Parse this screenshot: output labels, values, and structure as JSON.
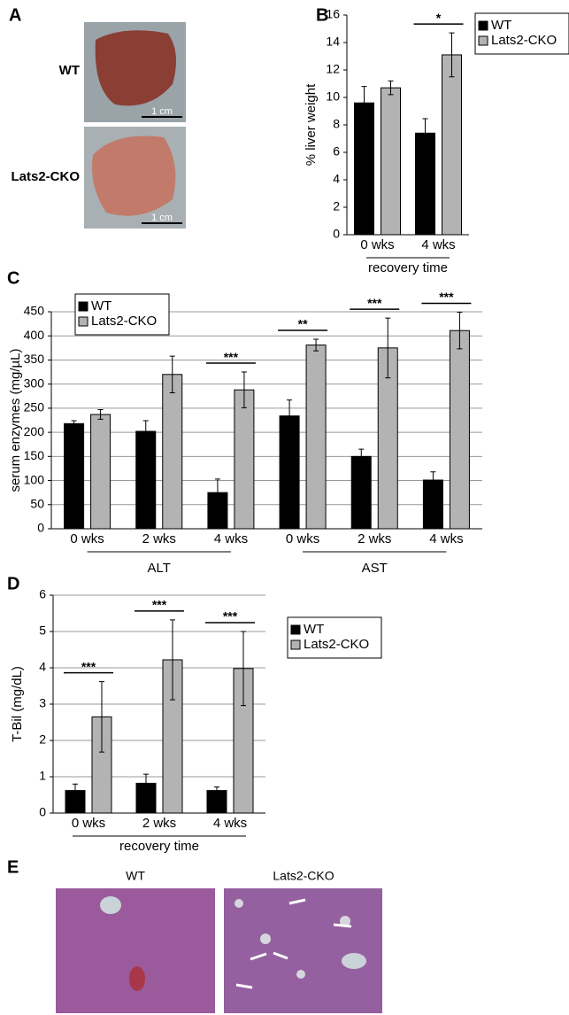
{
  "panel_labels": [
    "A",
    "B",
    "C",
    "D",
    "E"
  ],
  "panel_a": {
    "labels": [
      "WT",
      "Lats2-CKO"
    ],
    "scale_bars": [
      "1 cm",
      "1 cm"
    ]
  },
  "panel_e": {
    "labels": [
      "WT",
      "Lats2-CKO"
    ]
  },
  "chart_data": [
    {
      "type": "bar",
      "y_label": "% liver weight",
      "x_label": "recovery time",
      "categories": [
        "0 wks",
        "4 wks"
      ],
      "series": [
        {
          "name": "WT",
          "color": "#000000",
          "values": [
            9.6,
            7.4
          ],
          "errors": [
            1.2,
            1.05
          ]
        },
        {
          "name": "Lats2-CKO",
          "color": "#b3b3b3",
          "values": [
            10.7,
            13.1
          ],
          "errors": [
            0.5,
            1.6
          ]
        }
      ],
      "significance": [
        null,
        "*"
      ],
      "ylim": [
        0,
        16
      ],
      "yticks": [
        0,
        2,
        4,
        6,
        8,
        10,
        12,
        14,
        16
      ],
      "grid": false,
      "legend": "upper right"
    },
    {
      "type": "bar",
      "y_label": "serum enzymes (mg/µL)",
      "categories": [
        "0 wks",
        "2 wks",
        "4 wks",
        "0 wks",
        "2 wks",
        "4 wks"
      ],
      "group_labels": [
        "ALT",
        "AST"
      ],
      "series": [
        {
          "name": "WT",
          "color": "#000000",
          "values": [
            218,
            202,
            75,
            234,
            150,
            101
          ],
          "errors": [
            6,
            22,
            28,
            33,
            15,
            17
          ]
        },
        {
          "name": "Lats2-CKO",
          "color": "#b3b3b3",
          "values": [
            237,
            320,
            288,
            381,
            375,
            411
          ],
          "errors": [
            10,
            38,
            37,
            12,
            62,
            38
          ]
        }
      ],
      "significance": [
        null,
        null,
        "***",
        "**",
        "***",
        "***"
      ],
      "ylim": [
        0,
        450
      ],
      "yticks": [
        0,
        50,
        100,
        150,
        200,
        250,
        300,
        350,
        400,
        450
      ],
      "grid": true,
      "legend": "upper left"
    },
    {
      "type": "bar",
      "y_label": "T-Bil (mg/dL)",
      "x_label": "recovery time",
      "categories": [
        "0 wks",
        "2 wks",
        "4 wks"
      ],
      "series": [
        {
          "name": "WT",
          "color": "#000000",
          "values": [
            0.62,
            0.82,
            0.62
          ],
          "errors": [
            0.18,
            0.25,
            0.1
          ]
        },
        {
          "name": "Lats2-CKO",
          "color": "#b3b3b3",
          "values": [
            2.65,
            4.22,
            3.98
          ],
          "errors": [
            0.97,
            1.1,
            1.02
          ]
        }
      ],
      "significance": [
        "***",
        "***",
        "***"
      ],
      "ylim": [
        0,
        6
      ],
      "yticks": [
        0,
        1,
        2,
        3,
        4,
        5,
        6
      ],
      "grid": true,
      "legend": "right"
    }
  ]
}
